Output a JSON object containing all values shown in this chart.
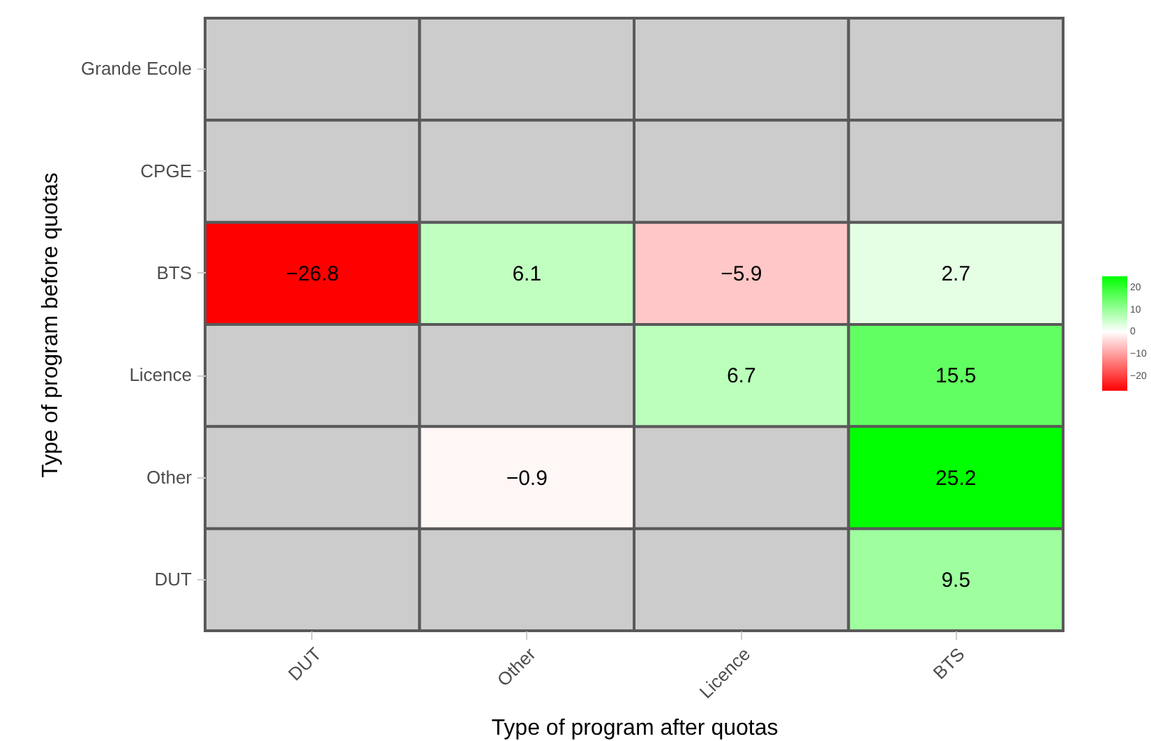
{
  "chart_data": {
    "type": "heatmap",
    "xlabel": "Type of program after quotas",
    "ylabel": "Type of program before quotas",
    "categories": [
      "DUT",
      "Other",
      "Licence",
      "BTS"
    ],
    "y_categories": [
      "Grande Ecole",
      "CPGE",
      "BTS",
      "Licence",
      "Other",
      "DUT"
    ],
    "cells": [
      [
        null,
        null,
        null,
        null
      ],
      [
        null,
        null,
        null,
        null
      ],
      [
        -26.8,
        6.1,
        -5.9,
        2.7
      ],
      [
        null,
        null,
        6.7,
        15.5
      ],
      [
        null,
        -0.9,
        null,
        25.2
      ],
      [
        null,
        null,
        null,
        9.5
      ]
    ],
    "clim": [
      -26.8,
      25.2
    ],
    "cticks": [
      -20,
      -10,
      0,
      10,
      20
    ],
    "data_labels": true
  }
}
